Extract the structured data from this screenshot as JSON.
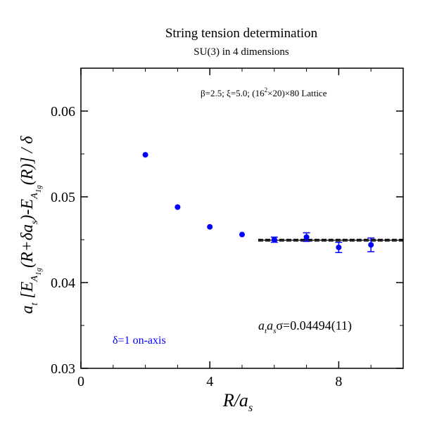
{
  "chart_data": {
    "type": "scatter",
    "title": "String tension determination",
    "subtitle": "SU(3) in 4 dimensions",
    "annotation_params": {
      "prefix": "β=2.5;  ξ=5.0; (16",
      "exponent": "2",
      "suffix": "×20)×80 Lattice"
    },
    "annotation_fit": {
      "a": "a",
      "t": "t",
      "a2": "a",
      "s": "s",
      "rest": "σ=0.04494(11)"
    },
    "legend_label": "δ=1 on-axis",
    "xlabel": {
      "main": "R/a",
      "sub": "s"
    },
    "ylabel": {
      "p1": "a",
      "p1_sub": "t",
      "p2": " [E",
      "p2_sub": "A",
      "p2_subsub": "1g",
      "p3": "(R+δa",
      "p3_sub": "s",
      "p4": ")-E",
      "p4_sub": "A",
      "p4_subsub": "1g",
      "p5": "(R)] / δ"
    },
    "xlim": [
      0,
      10
    ],
    "ylim": [
      0.03,
      0.065
    ],
    "x_ticks": [
      0,
      4,
      8
    ],
    "x_tick_labels": [
      "0",
      "4",
      "8"
    ],
    "y_ticks": [
      0.03,
      0.04,
      0.05,
      0.06
    ],
    "y_tick_labels": [
      "0.03",
      "0.04",
      "0.05",
      "0.06"
    ],
    "x_minor_step": 1,
    "y_minor_step": 0.005,
    "series": [
      {
        "color": "#0000ff",
        "points": [
          {
            "x": 2,
            "y": 0.0549,
            "err": 0.0
          },
          {
            "x": 3,
            "y": 0.0488,
            "err": 0.0
          },
          {
            "x": 4,
            "y": 0.0465,
            "err": 0.0
          },
          {
            "x": 5,
            "y": 0.0456,
            "err": 0.0
          },
          {
            "x": 6,
            "y": 0.045,
            "err": 0.0003
          },
          {
            "x": 7,
            "y": 0.0453,
            "err": 0.0005
          },
          {
            "x": 8,
            "y": 0.0441,
            "err": 0.0006
          },
          {
            "x": 9,
            "y": 0.0444,
            "err": 0.0008
          }
        ]
      }
    ],
    "fit": {
      "x_start": 5.5,
      "x_end": 10,
      "value": 0.04494,
      "error": 0.00011,
      "color": "#000000"
    }
  }
}
